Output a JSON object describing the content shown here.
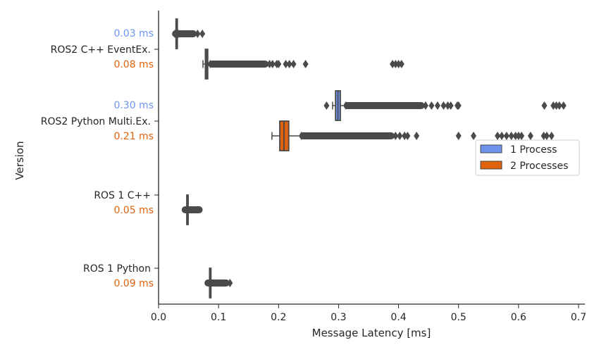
{
  "chart_data": {
    "type": "boxplot",
    "orientation": "horizontal",
    "xlabel": "Message Latency [ms]",
    "ylabel": "Version",
    "xlim": [
      0,
      0.7
    ],
    "xticks": [
      "0.0",
      "0.1",
      "0.2",
      "0.3",
      "0.4",
      "0.5",
      "0.6",
      "0.7"
    ],
    "legend": {
      "placement": "center-right",
      "entries": [
        {
          "name": "1 Process",
          "color": "#6f94ee"
        },
        {
          "name": "2 Processes",
          "color": "#e0620d"
        }
      ]
    },
    "categories": [
      {
        "name": "ROS2 C++ EventEx.",
        "labels": {
          "1 Process": "0.03 ms",
          "2 Processes": "0.08 ms"
        }
      },
      {
        "name": "ROS2 Python Multi.Ex.",
        "labels": {
          "1 Process": "0.30 ms",
          "2 Processes": "0.21 ms"
        }
      },
      {
        "name": "ROS 1 C++",
        "labels": {
          "2 Processes": "0.05 ms"
        }
      },
      {
        "name": "ROS 1 Python",
        "labels": {
          "2 Processes": "0.09 ms"
        }
      }
    ],
    "boxes": [
      {
        "category": 0,
        "series": "1 Process",
        "whislo": 0.027,
        "q1": 0.029,
        "med": 0.03,
        "q3": 0.031,
        "whishi": 0.033,
        "dense_outliers": [
          0.026,
          0.06
        ],
        "outliers": [
          0.065,
          0.073
        ]
      },
      {
        "category": 0,
        "series": "2 Processes",
        "whislo": 0.074,
        "q1": 0.078,
        "med": 0.08,
        "q3": 0.082,
        "whishi": 0.086,
        "dense_outliers": [
          0.086,
          0.18
        ],
        "outliers": [
          0.185,
          0.19,
          0.197,
          0.2,
          0.212,
          0.218,
          0.225,
          0.245,
          0.39,
          0.395,
          0.4,
          0.405
        ]
      },
      {
        "category": 1,
        "series": "1 Process",
        "whislo": 0.29,
        "q1": 0.295,
        "med": 0.299,
        "q3": 0.303,
        "whishi": 0.312,
        "dense_outliers": [
          0.312,
          0.44
        ],
        "outliers": [
          0.28,
          0.445,
          0.455,
          0.465,
          0.475,
          0.482,
          0.487,
          0.498,
          0.5,
          0.643,
          0.658,
          0.663,
          0.668,
          0.675
        ]
      },
      {
        "category": 1,
        "series": "2 Processes",
        "whislo": 0.189,
        "q1": 0.202,
        "med": 0.209,
        "q3": 0.217,
        "whishi": 0.238,
        "dense_outliers": [
          0.238,
          0.39
        ],
        "outliers": [
          0.395,
          0.402,
          0.41,
          0.415,
          0.43,
          0.5,
          0.525,
          0.565,
          0.572,
          0.58,
          0.588,
          0.595,
          0.6,
          0.605,
          0.62,
          0.642,
          0.647,
          0.655
        ]
      },
      {
        "category": 2,
        "series": "2 Processes",
        "whislo": 0.047,
        "q1": 0.047,
        "med": 0.048,
        "q3": 0.049,
        "whishi": 0.049,
        "dense_outliers": [
          0.042,
          0.07
        ],
        "outliers": []
      },
      {
        "category": 3,
        "series": "2 Processes",
        "whislo": 0.085,
        "q1": 0.085,
        "med": 0.086,
        "q3": 0.087,
        "whishi": 0.087,
        "dense_outliers": [
          0.08,
          0.115
        ],
        "outliers": [
          0.119
        ]
      }
    ]
  }
}
